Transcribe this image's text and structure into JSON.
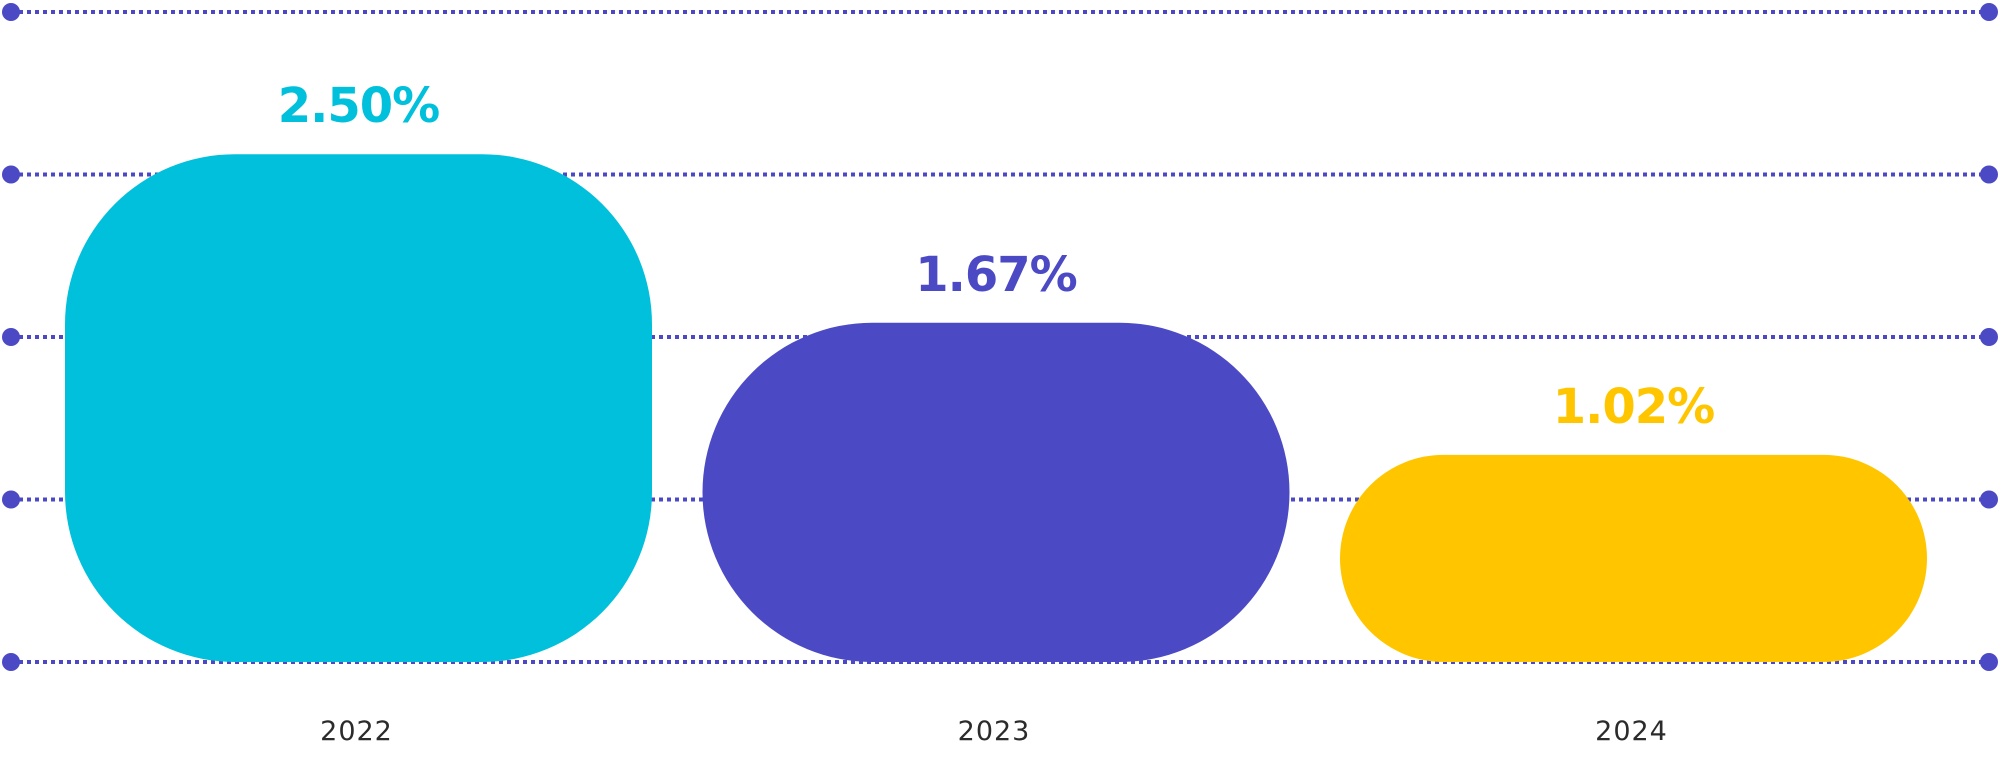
{
  "chart_data": {
    "type": "bar",
    "title": "",
    "xlabel": "",
    "ylabel": "",
    "categories": [
      "2022",
      "2023",
      "2024"
    ],
    "values": [
      2.5,
      1.67,
      1.02
    ],
    "value_labels": [
      "2.50%",
      "1.67%",
      "1.02%"
    ],
    "ylim": [
      0,
      3.2
    ],
    "gridlines": [
      0,
      0.8,
      1.6,
      2.4,
      3.2
    ],
    "grid": true,
    "legend": "none",
    "colors": [
      "#00C0DC",
      "#4B4AC4",
      "#FFC600"
    ],
    "grid_color": "#4B4AC4"
  }
}
